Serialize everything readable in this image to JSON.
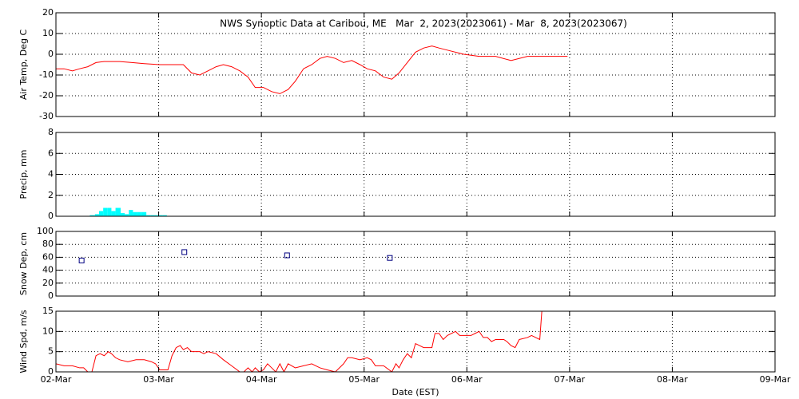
{
  "chart_data": [
    {
      "type": "line",
      "title": "NWS Synoptic Data at Caribou, ME   Mar  2, 2023(2023061) - Mar  8, 2023(2023067)",
      "ylabel": "Air Temp, Deg C",
      "xlim": [
        0,
        7
      ],
      "ylim": [
        -30,
        20
      ],
      "yticks": [
        -30,
        -20,
        -10,
        0,
        10,
        20
      ],
      "grid": true,
      "series": [
        {
          "name": "Air Temp",
          "color": "#ff0000",
          "x": [
            0,
            0.08,
            0.16,
            0.23,
            0.31,
            0.39,
            0.47,
            0.54,
            0.62,
            0.74,
            0.86,
            1.01,
            1.13,
            1.24,
            1.32,
            1.4,
            1.48,
            1.56,
            1.63,
            1.71,
            1.79,
            1.87,
            1.94,
            2.02,
            2.1,
            2.18,
            2.26,
            2.33,
            2.41,
            2.49,
            2.57,
            2.64,
            2.72,
            2.8,
            2.88,
            2.96,
            3.03,
            3.11,
            3.19,
            3.27,
            3.34,
            3.42,
            3.5,
            3.58,
            3.66,
            3.73,
            3.81,
            3.97,
            4.12,
            4.28,
            4.43,
            4.59,
            4.74,
            4.98
          ],
          "values": [
            -7,
            -7,
            -8,
            -7,
            -6,
            -4,
            -3.5,
            -3.5,
            -3.5,
            -4,
            -4.5,
            -5,
            -5,
            -5,
            -9,
            -10,
            -8,
            -6,
            -5,
            -6,
            -8,
            -11,
            -16,
            -16,
            -18,
            -19,
            -17,
            -13,
            -7,
            -5,
            -2,
            -1,
            -2,
            -4,
            -3,
            -5,
            -7,
            -8,
            -11,
            -12,
            -9,
            -4,
            1,
            3,
            4,
            3,
            2,
            0,
            -1,
            -1,
            -3,
            -1,
            -1,
            -1
          ]
        }
      ]
    },
    {
      "type": "histogram",
      "ylabel": "Precip, mm",
      "xlim": [
        0,
        7
      ],
      "ylim": [
        0,
        8
      ],
      "yticks": [
        0,
        2,
        4,
        6,
        8
      ],
      "grid": true,
      "color": "#00ffff",
      "bins": [
        0.33,
        0.38,
        0.42,
        0.46,
        0.5,
        0.54,
        0.58,
        0.63,
        0.67,
        0.71,
        0.75,
        0.79,
        0.83,
        0.88,
        0.92,
        0.96,
        1.0,
        1.04,
        1.08
      ],
      "values": [
        0.1,
        0.2,
        0.5,
        0.8,
        0.8,
        0.5,
        0.8,
        0.3,
        0.2,
        0.6,
        0.4,
        0.4,
        0.4,
        0.1,
        0.1,
        0.1,
        0.1,
        0.1
      ]
    },
    {
      "type": "scatter",
      "ylabel": "Snow Dep, cm",
      "xlim": [
        0,
        7
      ],
      "ylim": [
        0,
        100
      ],
      "yticks": [
        0,
        20,
        40,
        60,
        80,
        100
      ],
      "grid": true,
      "series": [
        {
          "name": "Snow Depth",
          "color": "#000080",
          "x": [
            0.25,
            1.25,
            2.25,
            3.25
          ],
          "values": [
            55,
            68,
            63,
            59
          ]
        }
      ]
    },
    {
      "type": "line",
      "ylabel": "Wind Spd, m/s",
      "xlabel": "Date (EST)",
      "xlim": [
        0,
        7
      ],
      "ylim": [
        0,
        15
      ],
      "yticks": [
        0,
        5,
        10,
        15
      ],
      "grid": true,
      "xticks": [
        {
          "value": 0,
          "label": "02-Mar"
        },
        {
          "value": 1,
          "label": "03-Mar"
        },
        {
          "value": 2,
          "label": "04-Mar"
        },
        {
          "value": 3,
          "label": "05-Mar"
        },
        {
          "value": 4,
          "label": "06-Mar"
        },
        {
          "value": 5,
          "label": "07-Mar"
        },
        {
          "value": 6,
          "label": "08-Mar"
        },
        {
          "value": 7,
          "label": "09-Mar"
        }
      ],
      "series": [
        {
          "name": "Wind Speed",
          "color": "#ff0000",
          "x": [
            0,
            0.08,
            0.16,
            0.23,
            0.27,
            0.31,
            0.35,
            0.39,
            0.43,
            0.47,
            0.51,
            0.54,
            0.58,
            0.62,
            0.7,
            0.78,
            0.86,
            0.93,
            0.97,
            1.01,
            1.09,
            1.13,
            1.17,
            1.21,
            1.24,
            1.28,
            1.32,
            1.4,
            1.44,
            1.48,
            1.56,
            1.63,
            1.71,
            1.79,
            1.83,
            1.87,
            1.91,
            1.94,
            1.98,
            2.02,
            2.06,
            2.1,
            2.14,
            2.18,
            2.22,
            2.26,
            2.33,
            2.41,
            2.49,
            2.57,
            2.64,
            2.72,
            2.8,
            2.84,
            2.88,
            2.96,
            3.03,
            3.07,
            3.11,
            3.19,
            3.27,
            3.31,
            3.34,
            3.38,
            3.42,
            3.46,
            3.5,
            3.54,
            3.58,
            3.66,
            3.69,
            3.73,
            3.77,
            3.81,
            3.89,
            3.93,
            3.97,
            4.04,
            4.08,
            4.12,
            4.16,
            4.2,
            4.24,
            4.28,
            4.36,
            4.39,
            4.43,
            4.47,
            4.51,
            4.59,
            4.63,
            4.67,
            4.71,
            4.73
          ],
          "values": [
            2,
            1.5,
            1.5,
            1,
            1,
            0,
            0,
            4,
            4.5,
            4,
            5,
            4.5,
            3.5,
            3,
            2.5,
            3,
            3,
            2.5,
            2,
            0.5,
            0.5,
            4,
            6,
            6.5,
            5.5,
            6,
            5,
            5,
            4.5,
            5,
            4.5,
            3,
            1.5,
            0,
            0,
            1,
            0,
            1,
            0,
            0.5,
            2,
            1,
            0,
            2,
            0,
            2,
            1,
            1.5,
            2,
            1,
            0.5,
            0,
            2,
            3.5,
            3.5,
            3,
            3.5,
            3,
            1.5,
            1.5,
            0,
            2,
            1,
            3,
            4.5,
            3.5,
            7,
            6.5,
            6,
            6,
            9.5,
            9.5,
            8,
            9,
            10,
            9,
            9,
            9,
            9.5,
            10,
            8.5,
            8.5,
            7.5,
            8,
            8,
            7.5,
            6.5,
            6,
            8,
            8.5,
            9,
            8.5,
            8,
            15
          ]
        }
      ]
    }
  ]
}
